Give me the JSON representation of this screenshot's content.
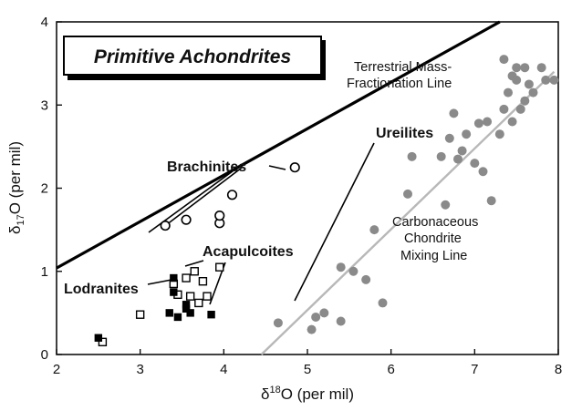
{
  "chart_data": {
    "type": "scatter",
    "title": "Primitive Achondrites",
    "xlabel": {
      "base": "δ",
      "sup": "18",
      "rest": "O (per mil)"
    },
    "ylabel": {
      "base": "δ",
      "sub": "17",
      "rest": "O (per mil)"
    },
    "xlim": [
      2,
      8
    ],
    "ylim": [
      0,
      4
    ],
    "xticks": [
      {
        "value": 2,
        "label": "2"
      },
      {
        "value": 3,
        "label": "3"
      },
      {
        "value": 4,
        "label": "4"
      },
      {
        "value": 5,
        "label": "5"
      },
      {
        "value": 6,
        "label": "6"
      },
      {
        "value": 7,
        "label": "7"
      },
      {
        "value": 8,
        "label": "8"
      }
    ],
    "yticks": [
      {
        "value": 0,
        "label": "0"
      },
      {
        "value": 1,
        "label": "1"
      },
      {
        "value": 2,
        "label": "2"
      },
      {
        "value": 3,
        "label": "3"
      },
      {
        "value": 4,
        "label": "4"
      }
    ],
    "grid": false,
    "reference_lines": [
      {
        "label": "Terrestrial Mass-Fractionation Line",
        "color": "#000000",
        "points": [
          [
            2.0,
            1.04
          ],
          [
            7.3,
            4.0
          ]
        ]
      },
      {
        "label": "Carbonaceous Chondrite Mixing Line",
        "color": "#b8b8b8",
        "points": [
          [
            4.45,
            0.0
          ],
          [
            7.95,
            3.4
          ]
        ]
      }
    ],
    "series": [
      {
        "name": "Ureilites",
        "marker": "filled-circle",
        "color": "#8a8a8a",
        "points": [
          [
            4.65,
            0.38
          ],
          [
            5.05,
            0.3
          ],
          [
            5.1,
            0.45
          ],
          [
            5.2,
            0.5
          ],
          [
            5.4,
            0.4
          ],
          [
            5.4,
            1.05
          ],
          [
            5.55,
            1.0
          ],
          [
            5.7,
            0.9
          ],
          [
            5.8,
            1.5
          ],
          [
            5.9,
            0.62
          ],
          [
            6.2,
            1.93
          ],
          [
            6.25,
            2.38
          ],
          [
            6.6,
            2.38
          ],
          [
            6.65,
            1.8
          ],
          [
            6.7,
            2.6
          ],
          [
            6.75,
            2.9
          ],
          [
            6.8,
            2.35
          ],
          [
            6.85,
            2.45
          ],
          [
            6.9,
            2.65
          ],
          [
            7.0,
            2.3
          ],
          [
            7.05,
            2.78
          ],
          [
            7.1,
            2.2
          ],
          [
            7.15,
            2.8
          ],
          [
            7.2,
            1.85
          ],
          [
            7.3,
            2.65
          ],
          [
            7.35,
            2.95
          ],
          [
            7.35,
            3.55
          ],
          [
            7.4,
            3.15
          ],
          [
            7.45,
            2.8
          ],
          [
            7.5,
            3.3
          ],
          [
            7.5,
            3.45
          ],
          [
            7.55,
            2.95
          ],
          [
            7.6,
            3.05
          ],
          [
            7.6,
            3.45
          ],
          [
            7.65,
            3.25
          ],
          [
            7.7,
            3.15
          ],
          [
            7.8,
            3.45
          ],
          [
            7.85,
            3.3
          ],
          [
            7.95,
            3.3
          ],
          [
            7.45,
            3.35
          ]
        ]
      },
      {
        "name": "Brachinites",
        "marker": "open-circle",
        "color": "#000000",
        "points": [
          [
            3.3,
            1.55
          ],
          [
            3.55,
            1.62
          ],
          [
            3.95,
            1.58
          ],
          [
            3.95,
            1.67
          ],
          [
            4.1,
            1.92
          ],
          [
            4.85,
            2.25
          ]
        ]
      },
      {
        "name": "Acapulcoites",
        "marker": "open-square",
        "color": "#000000",
        "points": [
          [
            3.0,
            0.48
          ],
          [
            3.4,
            0.85
          ],
          [
            3.45,
            0.72
          ],
          [
            3.55,
            0.92
          ],
          [
            3.6,
            0.7
          ],
          [
            3.65,
            1.0
          ],
          [
            3.7,
            0.62
          ],
          [
            3.75,
            0.88
          ],
          [
            3.8,
            0.7
          ],
          [
            3.95,
            1.05
          ],
          [
            2.55,
            0.15
          ]
        ]
      },
      {
        "name": "Lodranites",
        "marker": "filled-square",
        "color": "#000000",
        "points": [
          [
            2.5,
            0.2
          ],
          [
            3.35,
            0.5
          ],
          [
            3.4,
            0.92
          ],
          [
            3.4,
            0.75
          ],
          [
            3.45,
            0.45
          ],
          [
            3.55,
            0.6
          ],
          [
            3.55,
            0.55
          ],
          [
            3.6,
            0.5
          ],
          [
            3.85,
            0.48
          ]
        ]
      }
    ],
    "labels": {
      "ureilites": "Ureilites",
      "brachinites": "Brachinites",
      "acapulcoites": "Acapulcoites",
      "lodranites": "Lodranites",
      "terrestrial_line1": "Terrestrial Mass-",
      "terrestrial_line2": "Fractionation Line",
      "ccam_line1": "Carbonaceous",
      "ccam_line2": "Chondrite",
      "ccam_line3": "Mixing Line"
    }
  }
}
